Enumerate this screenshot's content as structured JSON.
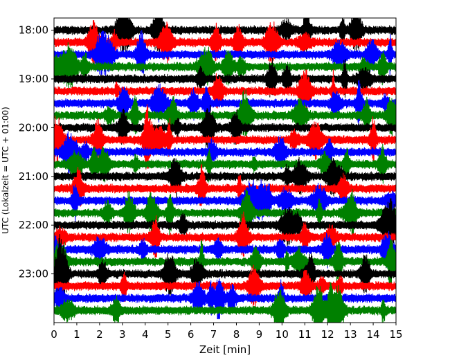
{
  "chart_data": {
    "type": "line",
    "title": "",
    "xlabel": "Zeit  [min]",
    "ylabel": "UTC (Lokalzeit = UTC + 01:00)",
    "xlim": [
      0,
      15
    ],
    "x_ticks": [
      "0",
      "1",
      "2",
      "3",
      "4",
      "5",
      "6",
      "7",
      "8",
      "9",
      "10",
      "11",
      "12",
      "13",
      "14",
      "15"
    ],
    "y_ticks": [
      "18:00",
      "19:00",
      "20:00",
      "21:00",
      "22:00",
      "23:00"
    ],
    "ylim_start": "17:45",
    "ylim_end": "24:00",
    "trace_interval_min": 15,
    "trace_count": 24,
    "first_trace": "18:00",
    "last_trace": "23:45",
    "color_cycle": [
      "#000000",
      "#ff0000",
      "#0000ff",
      "#008000"
    ],
    "grid": false,
    "legend": "none"
  }
}
